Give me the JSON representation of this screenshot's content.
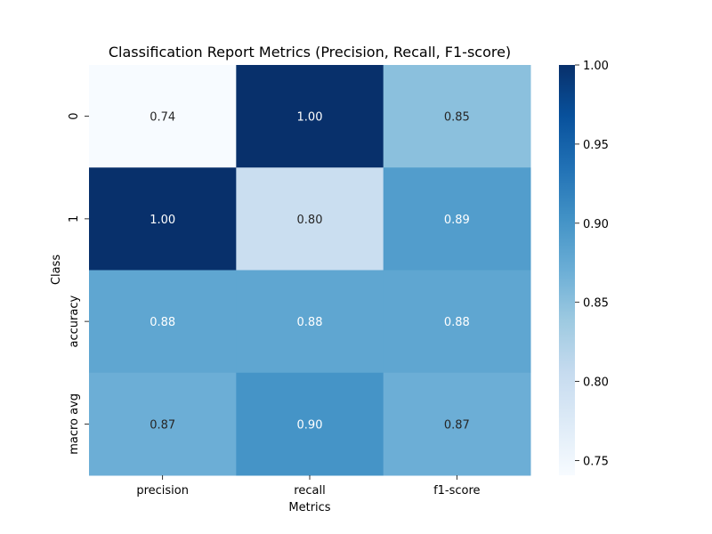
{
  "chart_data": {
    "type": "heatmap",
    "title": "Classification Report Metrics (Precision, Recall, F1-score)",
    "xlabel": "Metrics",
    "ylabel": "Class",
    "columns": [
      "precision",
      "recall",
      "f1-score"
    ],
    "rows": [
      "0",
      "1",
      "accuracy",
      "macro avg"
    ],
    "values": [
      [
        0.74,
        1.0,
        0.85
      ],
      [
        1.0,
        0.8,
        0.89
      ],
      [
        0.88,
        0.88,
        0.88
      ],
      [
        0.87,
        0.9,
        0.87
      ]
    ],
    "value_labels": [
      [
        "0.74",
        "1.00",
        "0.85"
      ],
      [
        "1.00",
        "0.80",
        "0.89"
      ],
      [
        "0.88",
        "0.88",
        "0.88"
      ],
      [
        "0.87",
        "0.90",
        "0.87"
      ]
    ],
    "colormap": "Blues",
    "color_range": [
      0.7407,
      1.0
    ],
    "colorbar_ticks": [
      0.75,
      0.8,
      0.85,
      0.9,
      0.95,
      1.0
    ],
    "colorbar_tick_labels": [
      "0.75",
      "0.80",
      "0.85",
      "0.90",
      "0.95",
      "1.00"
    ],
    "grid": false
  }
}
